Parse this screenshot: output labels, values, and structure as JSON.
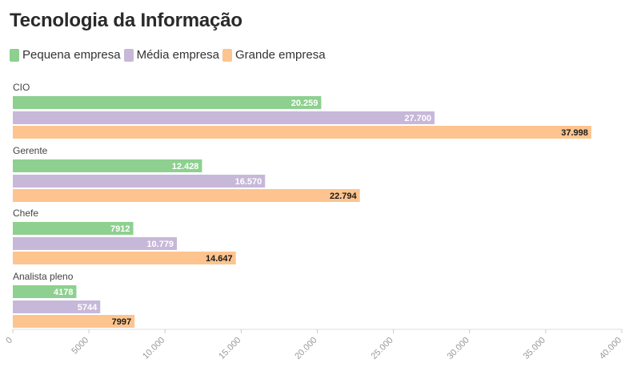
{
  "chart_data": {
    "type": "bar",
    "orientation": "horizontal",
    "title": "Tecnologia da Informação",
    "categories": [
      "CIO",
      "Gerente",
      "Chefe",
      "Analista pleno"
    ],
    "series": [
      {
        "name": "Pequena empresa",
        "color": "#8dd08f",
        "values": [
          20259,
          12428,
          7912,
          4178
        ],
        "labels": [
          "20.259",
          "12.428",
          "7912",
          "4178"
        ],
        "label_color": "#ffffff"
      },
      {
        "name": "Média empresa",
        "color": "#c7b8d9",
        "values": [
          27700,
          16570,
          10779,
          5744
        ],
        "labels": [
          "27.700",
          "16.570",
          "10.779",
          "5744"
        ],
        "label_color": "#ffffff"
      },
      {
        "name": "Grande empresa",
        "color": "#fdc48f",
        "values": [
          37998,
          22794,
          14647,
          7997
        ],
        "labels": [
          "37.998",
          "22.794",
          "14.647",
          "7997"
        ],
        "label_color": "#1a1a1a"
      }
    ],
    "xlim": [
      0,
      40000
    ],
    "xticks": [
      0,
      5000,
      10000,
      15000,
      20000,
      25000,
      30000,
      35000,
      40000
    ],
    "xtick_labels": [
      "0",
      "5000",
      "10.000",
      "15.000",
      "20.000",
      "25.000",
      "30.000",
      "35.000",
      "40.000"
    ],
    "legend_position": "top-left",
    "grid": false
  }
}
